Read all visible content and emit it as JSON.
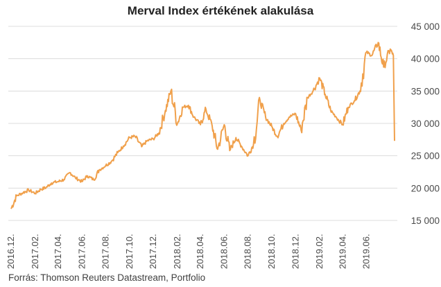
{
  "title": "Merval Index értékének alakulása",
  "source": "Forrás: Thomson Reuters Datastream, Portfolio",
  "chart_data": {
    "type": "line",
    "title": "Merval Index értékének alakulása",
    "xlabel": "",
    "ylabel": "",
    "ylim": [
      15000,
      45000
    ],
    "y_ticks": [
      15000,
      20000,
      25000,
      30000,
      35000,
      40000,
      45000
    ],
    "y_tick_labels": [
      "15 000",
      "20 000",
      "25 000",
      "30 000",
      "35 000",
      "40 000",
      "45 000"
    ],
    "x_tick_labels": [
      "2016.12.",
      "2017.02.",
      "2017.04.",
      "2017.06.",
      "2017.08.",
      "2017.10.",
      "2017.12.",
      "2018.02.",
      "2018.04.",
      "2018.06.",
      "2018.08.",
      "2018.10.",
      "2018.12.",
      "2019.02.",
      "2019.04.",
      "2019.06."
    ],
    "grid": "horizontal",
    "line_color": "#f0a04b",
    "grid_color": "#dcdcdc",
    "series": [
      {
        "x": [
          "2016-12-01",
          "2016-12-15",
          "2017-01-01",
          "2017-01-15",
          "2017-02-01",
          "2017-02-15",
          "2017-03-01",
          "2017-03-15",
          "2017-04-01",
          "2017-04-15",
          "2017-05-01",
          "2017-05-15",
          "2017-06-01",
          "2017-06-15",
          "2017-07-01",
          "2017-07-15",
          "2017-08-01",
          "2017-08-15",
          "2017-09-01",
          "2017-09-15",
          "2017-10-01",
          "2017-10-15",
          "2017-11-01",
          "2017-11-15",
          "2017-12-01",
          "2017-12-15",
          "2018-01-01",
          "2018-01-15",
          "2018-02-01",
          "2018-02-15",
          "2018-03-01",
          "2018-03-15",
          "2018-04-01",
          "2018-04-15",
          "2018-05-01",
          "2018-05-15",
          "2018-06-01",
          "2018-06-15",
          "2018-07-01",
          "2018-07-15",
          "2018-08-01",
          "2018-08-15",
          "2018-09-01",
          "2018-09-15",
          "2018-10-01",
          "2018-10-15",
          "2018-11-01",
          "2018-11-15",
          "2018-12-01",
          "2018-12-15",
          "2019-01-01",
          "2019-01-15",
          "2019-02-01",
          "2019-02-15",
          "2019-03-01",
          "2019-03-15",
          "2019-04-01",
          "2019-04-15",
          "2019-05-01",
          "2019-05-15",
          "2019-06-01",
          "2019-06-15",
          "2019-07-01",
          "2019-07-15",
          "2019-08-01",
          "2019-08-09",
          "2019-08-12"
        ],
        "values": [
          16800,
          18800,
          19300,
          19700,
          19200,
          19800,
          20100,
          20800,
          21000,
          21300,
          22400,
          21600,
          21000,
          21900,
          21300,
          22800,
          23500,
          24100,
          25500,
          26500,
          27800,
          28000,
          26400,
          27300,
          27600,
          28500,
          32000,
          35000,
          30000,
          32500,
          32800,
          31000,
          29800,
          32200,
          29600,
          26000,
          29800,
          25800,
          27800,
          26500,
          25000,
          26800,
          33500,
          31000,
          29500,
          28000,
          30000,
          31000,
          31500,
          29000,
          34000,
          35000,
          37000,
          34500,
          32000,
          31000,
          29800,
          32500,
          33500,
          35000,
          41000,
          40500,
          42500,
          38700,
          41500,
          40500,
          27300
        ]
      }
    ]
  }
}
